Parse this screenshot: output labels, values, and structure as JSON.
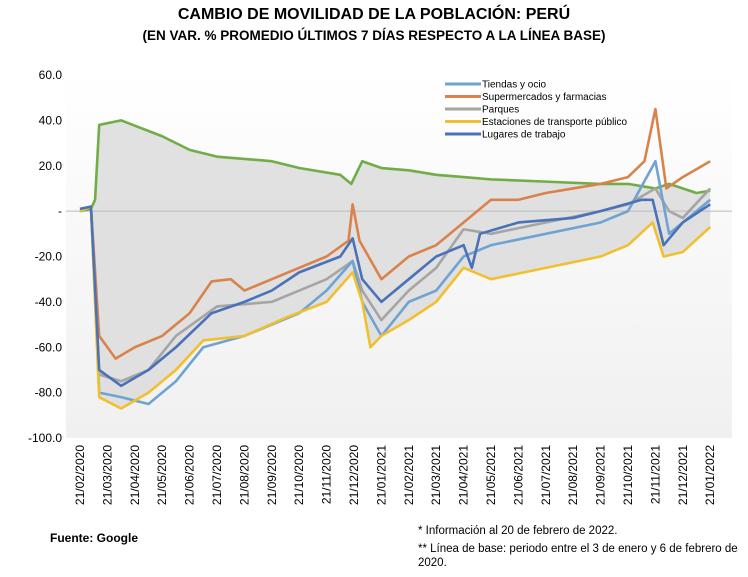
{
  "chart_data": {
    "type": "line",
    "title": "CAMBIO DE MOVILIDAD DE LA POBLACIÓN: PERÚ",
    "subtitle": "(EN VAR. % PROMEDIO ÚLTIMOS 7 DÍAS RESPECTO A LA LÍNEA BASE)",
    "xlabel": "",
    "ylabel": "",
    "ylim": [
      -100,
      60
    ],
    "yticks": [
      {
        "v": 60,
        "label": "60.0"
      },
      {
        "v": 40,
        "label": "40.0"
      },
      {
        "v": 20,
        "label": "20.0"
      },
      {
        "v": 0,
        "label": "-"
      },
      {
        "v": -20,
        "label": "-20.0"
      },
      {
        "v": -40,
        "label": "-40.0"
      },
      {
        "v": -60,
        "label": "-60.0"
      },
      {
        "v": -80,
        "label": "-80.0"
      },
      {
        "v": -100,
        "label": "-100.0"
      }
    ],
    "xticks": [
      "21/02/2020",
      "21/03/2020",
      "21/04/2020",
      "21/05/2020",
      "21/06/2020",
      "21/07/2020",
      "21/08/2020",
      "21/09/2020",
      "21/10/2020",
      "21/11/2020",
      "21/12/2020",
      "21/01/2021",
      "21/02/2021",
      "21/03/2021",
      "21/04/2021",
      "21/05/2021",
      "21/06/2021",
      "21/07/2021",
      "21/08/2021",
      "21/09/2021",
      "21/10/2021",
      "21/11/2021",
      "21/12/2021",
      "21/01/2022"
    ],
    "x_unit": "months since 21/02/2020",
    "legend_position": "top-right",
    "series": [
      {
        "name": "Tiendas y ocio",
        "color": "#6fa3d2",
        "points": [
          [
            0,
            1
          ],
          [
            0.4,
            2
          ],
          [
            0.7,
            -80
          ],
          [
            1.5,
            -82
          ],
          [
            2.5,
            -85
          ],
          [
            3.5,
            -75
          ],
          [
            4.5,
            -60
          ],
          [
            6,
            -55
          ],
          [
            8,
            -45
          ],
          [
            9,
            -35
          ],
          [
            9.95,
            -22
          ],
          [
            10.3,
            -40
          ],
          [
            11,
            -55
          ],
          [
            12,
            -40
          ],
          [
            13,
            -35
          ],
          [
            14,
            -20
          ],
          [
            15,
            -15
          ],
          [
            17,
            -10
          ],
          [
            19,
            -5
          ],
          [
            20,
            0
          ],
          [
            21,
            22
          ],
          [
            21.5,
            -10
          ],
          [
            22,
            -5
          ],
          [
            23,
            5
          ]
        ]
      },
      {
        "name": "Supermercados y farmacias",
        "color": "#d9834c",
        "points": [
          [
            0,
            0
          ],
          [
            0.4,
            2
          ],
          [
            0.7,
            -55
          ],
          [
            1.3,
            -65
          ],
          [
            2,
            -60
          ],
          [
            3,
            -55
          ],
          [
            4,
            -45
          ],
          [
            4.8,
            -31
          ],
          [
            5.5,
            -30
          ],
          [
            6,
            -35
          ],
          [
            7,
            -30
          ],
          [
            8,
            -25
          ],
          [
            9,
            -20
          ],
          [
            9.8,
            -13
          ],
          [
            9.95,
            3
          ],
          [
            10.2,
            -13
          ],
          [
            11,
            -30
          ],
          [
            12,
            -20
          ],
          [
            13,
            -15
          ],
          [
            14,
            -5
          ],
          [
            15,
            5
          ],
          [
            16,
            5
          ],
          [
            17,
            8
          ],
          [
            18,
            10
          ],
          [
            19,
            12
          ],
          [
            20,
            15
          ],
          [
            20.6,
            22
          ],
          [
            21,
            45
          ],
          [
            21.4,
            10
          ],
          [
            22,
            15
          ],
          [
            23,
            22
          ]
        ]
      },
      {
        "name": "Parques",
        "color": "#a5a5a5",
        "points": [
          [
            0,
            0
          ],
          [
            0.4,
            2
          ],
          [
            0.7,
            -72
          ],
          [
            1.5,
            -75
          ],
          [
            2.5,
            -70
          ],
          [
            3.5,
            -55
          ],
          [
            5,
            -42
          ],
          [
            7,
            -40
          ],
          [
            8,
            -35
          ],
          [
            9,
            -30
          ],
          [
            9.95,
            -22
          ],
          [
            10.3,
            -35
          ],
          [
            11,
            -48
          ],
          [
            12,
            -35
          ],
          [
            13,
            -25
          ],
          [
            14,
            -8
          ],
          [
            15,
            -10
          ],
          [
            17,
            -5
          ],
          [
            19,
            0
          ],
          [
            20,
            3
          ],
          [
            21,
            10
          ],
          [
            21.5,
            0
          ],
          [
            22,
            -3
          ],
          [
            23,
            10
          ]
        ]
      },
      {
        "name": "Estaciones de transporte público",
        "color": "#f0c030",
        "points": [
          [
            0,
            0
          ],
          [
            0.4,
            2
          ],
          [
            0.7,
            -82
          ],
          [
            1.5,
            -87
          ],
          [
            2.5,
            -80
          ],
          [
            3.5,
            -70
          ],
          [
            4.5,
            -57
          ],
          [
            6,
            -55
          ],
          [
            7.5,
            -47
          ],
          [
            9,
            -40
          ],
          [
            9.95,
            -27
          ],
          [
            10.3,
            -40
          ],
          [
            10.6,
            -60
          ],
          [
            11,
            -55
          ],
          [
            12,
            -48
          ],
          [
            13,
            -40
          ],
          [
            14,
            -25
          ],
          [
            15,
            -30
          ],
          [
            17,
            -25
          ],
          [
            19,
            -20
          ],
          [
            20,
            -15
          ],
          [
            20.9,
            -5
          ],
          [
            21.3,
            -20
          ],
          [
            22,
            -18
          ],
          [
            23,
            -7
          ]
        ]
      },
      {
        "name": "Lugares de trabajo",
        "color": "#4a72b8",
        "points": [
          [
            0,
            1
          ],
          [
            0.4,
            2
          ],
          [
            0.7,
            -70
          ],
          [
            1.5,
            -77
          ],
          [
            2.5,
            -70
          ],
          [
            3.5,
            -60
          ],
          [
            4.8,
            -45
          ],
          [
            6,
            -40
          ],
          [
            7,
            -35
          ],
          [
            8,
            -27
          ],
          [
            9.5,
            -20
          ],
          [
            9.95,
            -12
          ],
          [
            10.3,
            -30
          ],
          [
            11,
            -40
          ],
          [
            12,
            -30
          ],
          [
            13,
            -20
          ],
          [
            14,
            -15
          ],
          [
            14.3,
            -25
          ],
          [
            14.6,
            -10
          ],
          [
            16,
            -5
          ],
          [
            18,
            -3
          ],
          [
            19,
            0
          ],
          [
            20.5,
            5
          ],
          [
            20.9,
            5
          ],
          [
            21.3,
            -15
          ],
          [
            22,
            -5
          ],
          [
            23,
            3
          ]
        ]
      },
      {
        "name": "",
        "color": "#70ad47",
        "points": [
          [
            0,
            0
          ],
          [
            0.4,
            1
          ],
          [
            0.55,
            5
          ],
          [
            0.7,
            38
          ],
          [
            1.5,
            40
          ],
          [
            3,
            33
          ],
          [
            4,
            27
          ],
          [
            5,
            24
          ],
          [
            7,
            22
          ],
          [
            8,
            19
          ],
          [
            9.5,
            16
          ],
          [
            9.9,
            12
          ],
          [
            10.3,
            22
          ],
          [
            11,
            19
          ],
          [
            12,
            18
          ],
          [
            13,
            16
          ],
          [
            14,
            15
          ],
          [
            15,
            14
          ],
          [
            17,
            13
          ],
          [
            19,
            12
          ],
          [
            20,
            12
          ],
          [
            21,
            10
          ],
          [
            21.5,
            12
          ],
          [
            22.5,
            8
          ],
          [
            23,
            9
          ]
        ]
      }
    ]
  },
  "notes": {
    "source": "Fuente: Google",
    "note1": "* Información al 20 de febrero de 2022.",
    "note2": "** Línea de base: periodo entre el 3 de enero y 6 de febrero de 2020."
  }
}
